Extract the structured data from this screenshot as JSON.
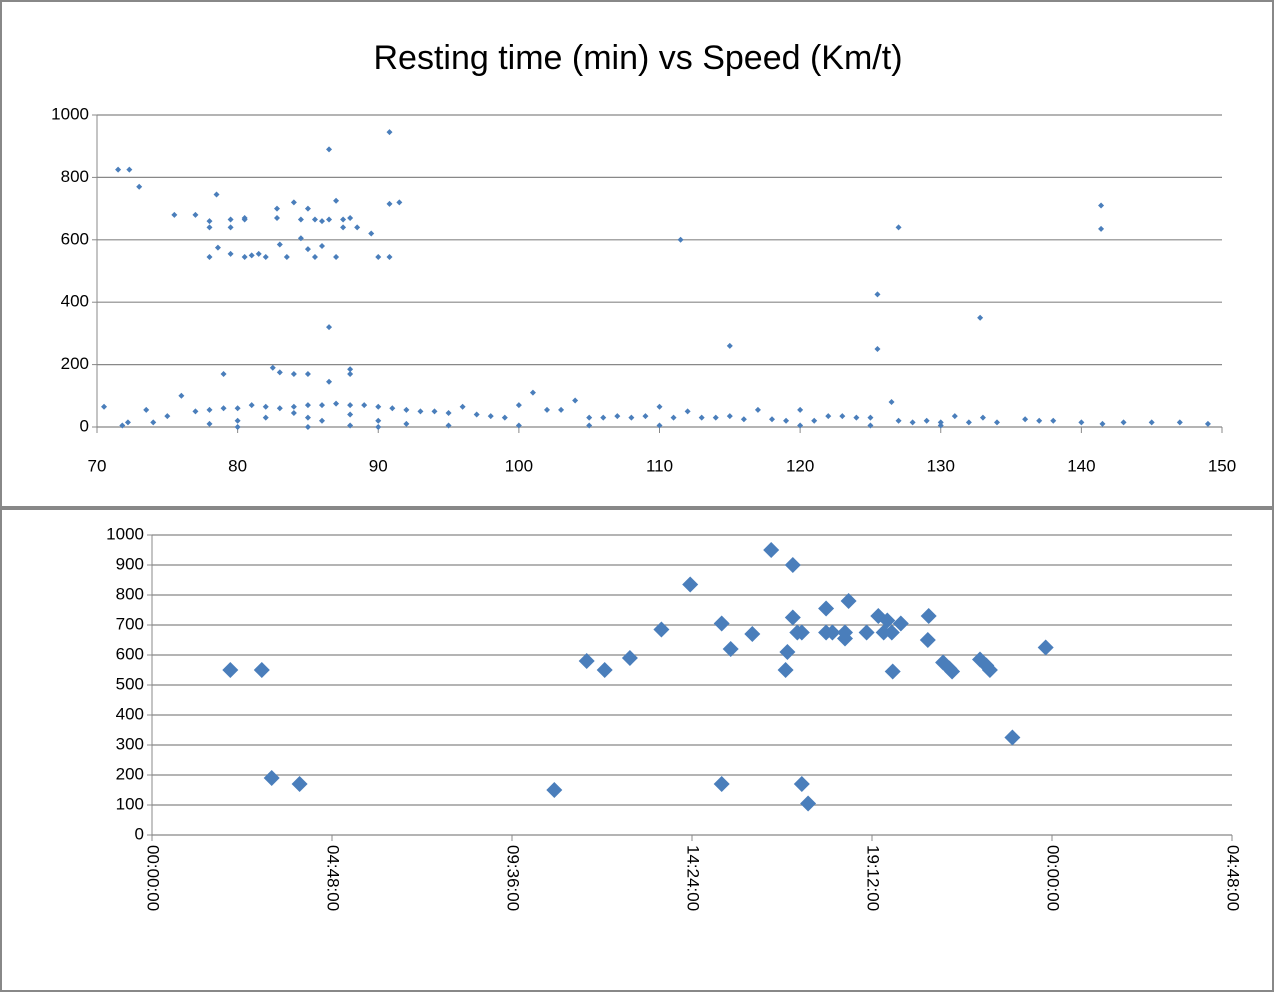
{
  "chart_data": [
    {
      "type": "scatter",
      "title": "Resting time (min) vs Speed (Km/t)",
      "xlim": [
        70,
        150
      ],
      "xticks": [
        70,
        80,
        90,
        100,
        110,
        120,
        130,
        140,
        150
      ],
      "ylim": [
        0,
        1000
      ],
      "yticks": [
        0,
        200,
        400,
        600,
        800,
        1000
      ],
      "grid": true,
      "series": [
        {
          "color": "#4a7ebb",
          "x": [
            71.5,
            72.3,
            73,
            75.5,
            77,
            78,
            78,
            78,
            78.5,
            78.6,
            79,
            79.5,
            79.5,
            79.5,
            80.5,
            80.5,
            80.5,
            81,
            81.5,
            82,
            82.5,
            82.8,
            82.8,
            83,
            83,
            83.5,
            84,
            84,
            84.5,
            84.5,
            85,
            85,
            85,
            85.5,
            85.5,
            86,
            86,
            86.5,
            86.5,
            86.5,
            86.5,
            87,
            87,
            87.5,
            87.5,
            88,
            88,
            88,
            88.5,
            89.5,
            90,
            90.8,
            90.8,
            90.8,
            91.5,
            111.5,
            115,
            125.5,
            125.5,
            126.5,
            127,
            132.8,
            141.4,
            141.4,
            70.5,
            71.8,
            72.2,
            73.5,
            74,
            75,
            76,
            77,
            78,
            79,
            80,
            81,
            82,
            83,
            84,
            85,
            86,
            87,
            88,
            89,
            90,
            91,
            92,
            93,
            94,
            95,
            96,
            97,
            98,
            99,
            100,
            101,
            102,
            103,
            104,
            105,
            106,
            107,
            108,
            109,
            110,
            111,
            112,
            113,
            114,
            115,
            116,
            117,
            118,
            119,
            120,
            121,
            122,
            123,
            124,
            125,
            127,
            128,
            129,
            130,
            131,
            132,
            133,
            134,
            136,
            137,
            138,
            140,
            141.5,
            143,
            145,
            147,
            149,
            78,
            80,
            80,
            82,
            84,
            85,
            85,
            86,
            88,
            88,
            90,
            90,
            92,
            95,
            100,
            105,
            110,
            120,
            125,
            130
          ],
          "values": [
            825,
            825,
            770,
            680,
            680,
            660,
            640,
            545,
            745,
            575,
            170,
            665,
            640,
            555,
            670,
            665,
            545,
            550,
            555,
            545,
            190,
            700,
            670,
            585,
            175,
            545,
            720,
            170,
            605,
            665,
            700,
            570,
            170,
            665,
            545,
            580,
            660,
            890,
            665,
            320,
            145,
            725,
            545,
            665,
            640,
            670,
            185,
            170,
            640,
            620,
            545,
            945,
            715,
            545,
            720,
            600,
            260,
            425,
            250,
            80,
            640,
            350,
            710,
            635,
            65,
            5,
            15,
            55,
            15,
            35,
            100,
            50,
            55,
            60,
            60,
            70,
            65,
            60,
            65,
            70,
            70,
            75,
            70,
            70,
            65,
            60,
            55,
            50,
            50,
            45,
            65,
            40,
            35,
            30,
            70,
            110,
            55,
            55,
            85,
            30,
            30,
            35,
            30,
            35,
            65,
            30,
            50,
            30,
            30,
            35,
            25,
            55,
            25,
            20,
            55,
            20,
            35,
            35,
            30,
            30,
            20,
            15,
            20,
            15,
            35,
            15,
            30,
            15,
            25,
            20,
            20,
            15,
            10,
            15,
            15,
            15,
            10,
            10,
            20,
            0,
            30,
            45,
            30,
            0,
            20,
            40,
            5,
            20,
            0,
            10,
            5,
            5,
            5,
            5,
            5,
            5,
            5
          ]
        }
      ]
    },
    {
      "type": "scatter",
      "xlim": [
        0,
        1.2
      ],
      "xticks": [
        {
          "value": 0,
          "label": "00:00:00"
        },
        {
          "value": 0.2,
          "label": "04:48:00"
        },
        {
          "value": 0.4,
          "label": "09:36:00"
        },
        {
          "value": 0.6,
          "label": "14:24:00"
        },
        {
          "value": 0.8,
          "label": "19:12:00"
        },
        {
          "value": 1.0,
          "label": "00:00:00"
        },
        {
          "value": 1.2,
          "label": "04:48:00"
        }
      ],
      "ylim": [
        0,
        1000
      ],
      "yticks": [
        0,
        100,
        200,
        300,
        400,
        500,
        600,
        700,
        800,
        900,
        1000
      ],
      "grid": true,
      "series": [
        {
          "color": "#4a7ebb",
          "x": [
            0.087,
            0.122,
            0.133,
            0.164,
            0.447,
            0.483,
            0.503,
            0.531,
            0.566,
            0.598,
            0.633,
            0.633,
            0.643,
            0.667,
            0.688,
            0.704,
            0.706,
            0.712,
            0.712,
            0.717,
            0.722,
            0.722,
            0.729,
            0.749,
            0.749,
            0.756,
            0.77,
            0.77,
            0.774,
            0.794,
            0.807,
            0.813,
            0.817,
            0.822,
            0.823,
            0.832,
            0.863,
            0.862,
            0.879,
            0.886,
            0.889,
            0.92,
            0.927,
            0.931,
            0.956,
            0.993
          ],
          "values": [
            550,
            550,
            190,
            170,
            150,
            580,
            550,
            590,
            685,
            835,
            705,
            170,
            620,
            670,
            950,
            550,
            610,
            900,
            725,
            675,
            675,
            170,
            105,
            755,
            675,
            675,
            675,
            655,
            780,
            675,
            730,
            675,
            715,
            675,
            545,
            705,
            730,
            650,
            575,
            555,
            545,
            585,
            565,
            550,
            325,
            625
          ]
        }
      ]
    }
  ]
}
